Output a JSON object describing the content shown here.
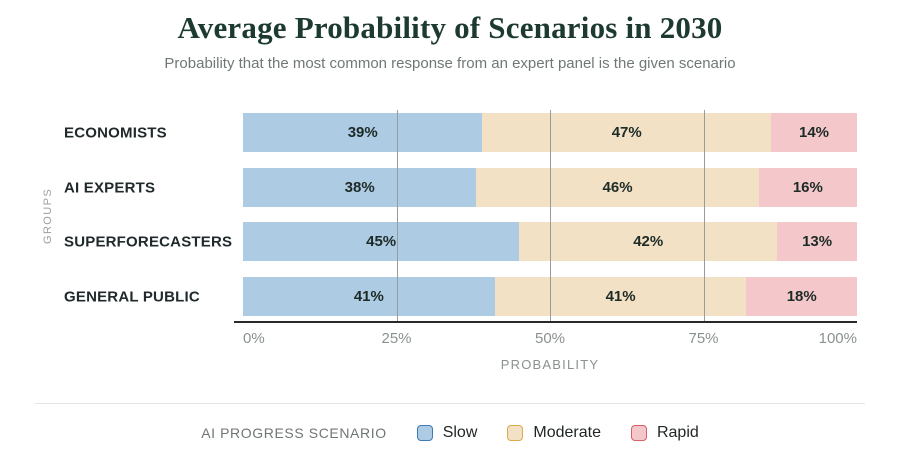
{
  "header": {
    "title": "Average Probability of Scenarios in 2030",
    "subtitle": "Probability that the most common response from an expert panel is the given scenario"
  },
  "chart_data": {
    "type": "bar",
    "orientation": "horizontal",
    "stacked": true,
    "title": "Average Probability of Scenarios in 2030",
    "subtitle": "Probability that the most common response from an expert panel is the given scenario",
    "xlabel": "PROBABILITY",
    "ylabel": "GROUPS",
    "xlim": [
      0,
      100
    ],
    "x_ticks": [
      "0%",
      "25%",
      "50%",
      "75%",
      "100%"
    ],
    "gridlines": [
      25,
      50,
      75
    ],
    "categories": [
      "ECONOMISTS",
      "AI EXPERTS",
      "SUPERFORECASTERS",
      "GENERAL PUBLIC"
    ],
    "series": [
      {
        "name": "Slow",
        "color": "#aecbe4",
        "values": [
          39,
          38,
          45,
          41
        ]
      },
      {
        "name": "Moderate",
        "color": "#f3e1c6",
        "values": [
          47,
          46,
          42,
          41
        ]
      },
      {
        "name": "Rapid",
        "color": "#f4c8cb",
        "values": [
          14,
          16,
          13,
          18
        ]
      }
    ],
    "value_suffix": "%",
    "legend_position": "bottom"
  },
  "legend": {
    "title": "AI PROGRESS SCENARIO",
    "items": [
      {
        "label": "Slow",
        "fill": "#aecbe4",
        "border": "#3f7cb5"
      },
      {
        "label": "Moderate",
        "fill": "#f3e1c6",
        "border": "#dca94e"
      },
      {
        "label": "Rapid",
        "fill": "#f4c8cb",
        "border": "#d85f66"
      }
    ]
  },
  "colors": {
    "title_text": "#1d3a31",
    "subtitle_text": "#707876",
    "axis_line": "#2a2a2a",
    "gridline": "#9b9b9b",
    "tick_label": "#8a918f",
    "category_label": "#20292b",
    "value_label": "#1d2b26",
    "divider": "#e4e4e4"
  }
}
